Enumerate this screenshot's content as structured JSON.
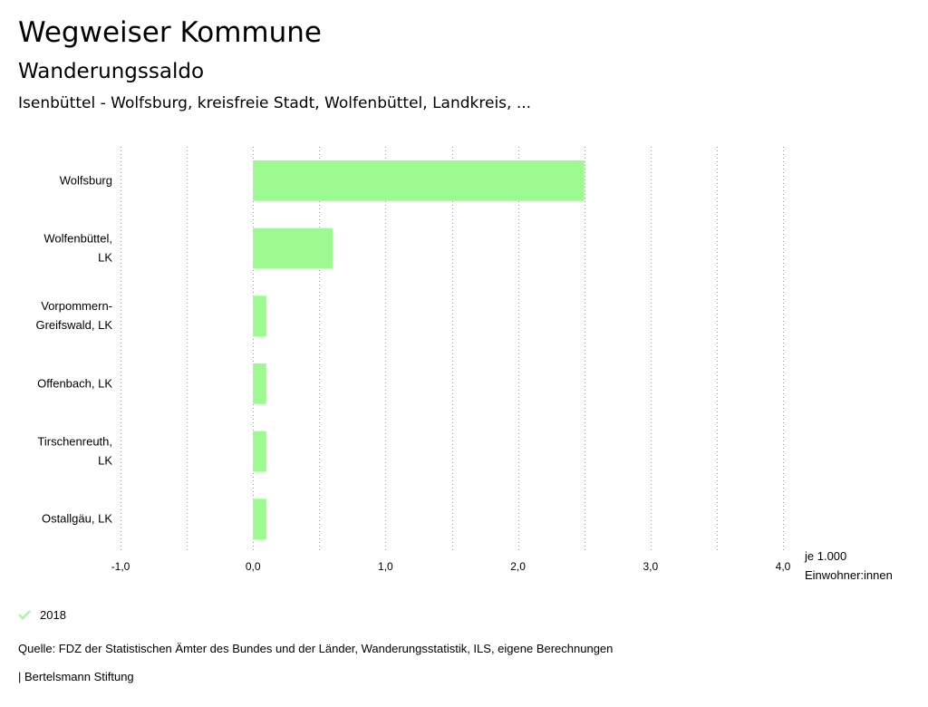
{
  "header": {
    "title": "Wegweiser Kommune",
    "subtitle": "Wanderungssaldo",
    "region": "Isenbüttel - Wolfsburg, kreisfreie Stadt, Wolfenbüttel, Landkreis, ..."
  },
  "legend": {
    "label": "2018",
    "icon": "check-icon",
    "color": "#9cfa91"
  },
  "footer": {
    "source": "Quelle: FDZ der Statistischen Ämter des Bundes und der Länder, Wanderungsstatistik, ILS, eigene Berechnungen",
    "credit": "| Bertelsmann Stiftung"
  },
  "colors": {
    "bar": "#9cfa91",
    "grid": "#9a9a9a"
  },
  "chart_data": {
    "type": "bar",
    "orientation": "horizontal",
    "categories": [
      [
        "Wolfsburg"
      ],
      [
        "Wolfenbüttel,",
        "LK"
      ],
      [
        "Vorpommern-",
        "Greifswald, LK"
      ],
      [
        "Offenbach, LK"
      ],
      [
        "Tirschenreuth,",
        "LK"
      ],
      [
        "Ostallgäu, LK"
      ]
    ],
    "series": [
      {
        "name": "2018",
        "values": [
          2.5,
          0.6,
          0.1,
          0.1,
          0.1,
          0.1
        ]
      }
    ],
    "xlim": [
      -1.0,
      4.0
    ],
    "xticks": [
      -1.0,
      0.0,
      1.0,
      2.0,
      3.0,
      4.0
    ],
    "xtick_labels": [
      "-1,0",
      "0,0",
      "1,0",
      "2,0",
      "3,0",
      "4,0"
    ],
    "xlabel": [
      "je 1.000",
      "Einwohner:innen"
    ],
    "grid": "vertical-dotted",
    "legend_position": "bottom-left"
  }
}
